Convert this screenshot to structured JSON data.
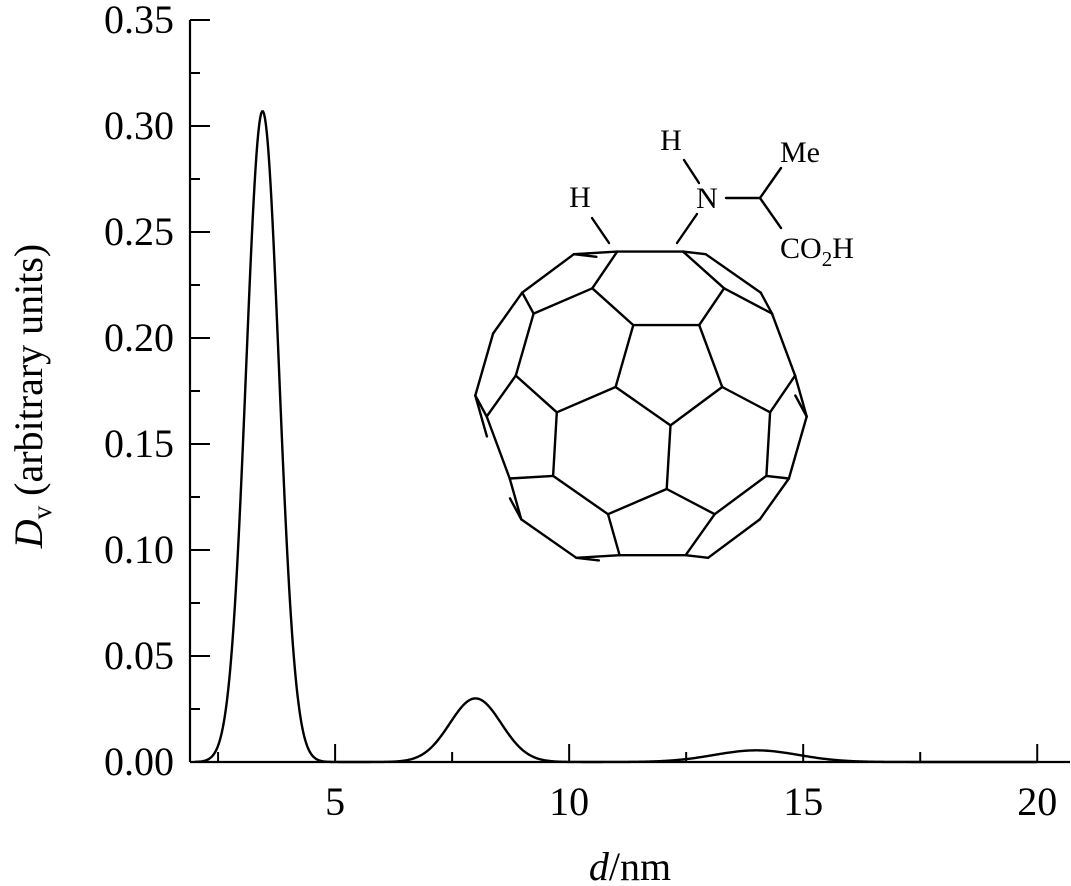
{
  "chart_data": {
    "type": "line",
    "title": "",
    "xlabel": {
      "italic": "d",
      "rest": "/nm"
    },
    "ylabel": {
      "italic": "D",
      "subscript": "v",
      "rest": " (arbitrary units)"
    },
    "xlim": [
      1.9,
      20.7
    ],
    "ylim": [
      0,
      0.35
    ],
    "x_ticks": [
      5,
      10,
      15,
      20
    ],
    "x_minor_ticks": [
      2.5,
      7.5,
      12.5,
      17.5
    ],
    "y_ticks": [
      0.0,
      0.05,
      0.1,
      0.15,
      0.2,
      0.25,
      0.3,
      0.35
    ],
    "y_tick_labels": [
      "0.00",
      "0.05",
      "0.10",
      "0.15",
      "0.20",
      "0.25",
      "0.30",
      "0.35"
    ],
    "x_tick_labels": [
      "5",
      "10",
      "15",
      "20"
    ],
    "grid": false,
    "series": [
      {
        "color": "#000000",
        "peaks": [
          {
            "center": 3.45,
            "height": 0.307,
            "sigma": 0.35
          },
          {
            "center": 8.0,
            "height": 0.03,
            "sigma": 0.55
          },
          {
            "center": 14.0,
            "height": 0.0055,
            "sigma": 0.9
          }
        ],
        "x": [
          2.0,
          2.5,
          2.8,
          3.0,
          3.2,
          3.45,
          3.7,
          3.9,
          4.1,
          4.4,
          4.8,
          5.5,
          6.5,
          7.0,
          7.5,
          8.0,
          8.5,
          9.0,
          9.5,
          10.5,
          12.0,
          13.0,
          14.0,
          15.0,
          16.0,
          17.0,
          20.0
        ],
        "y": [
          0.0,
          0.008,
          0.055,
          0.135,
          0.237,
          0.307,
          0.237,
          0.148,
          0.055,
          0.008,
          0.0,
          0.0,
          0.002,
          0.008,
          0.02,
          0.03,
          0.02,
          0.008,
          0.002,
          0.0,
          0.0,
          0.0027,
          0.0055,
          0.0027,
          0.0005,
          0.0,
          0.0
        ]
      }
    ]
  },
  "structure": {
    "labels": {
      "h_left": "H",
      "h_top": "H",
      "n": "N",
      "me": "Me",
      "co": "CO",
      "co_sub": "2",
      "co_h": "H"
    }
  }
}
